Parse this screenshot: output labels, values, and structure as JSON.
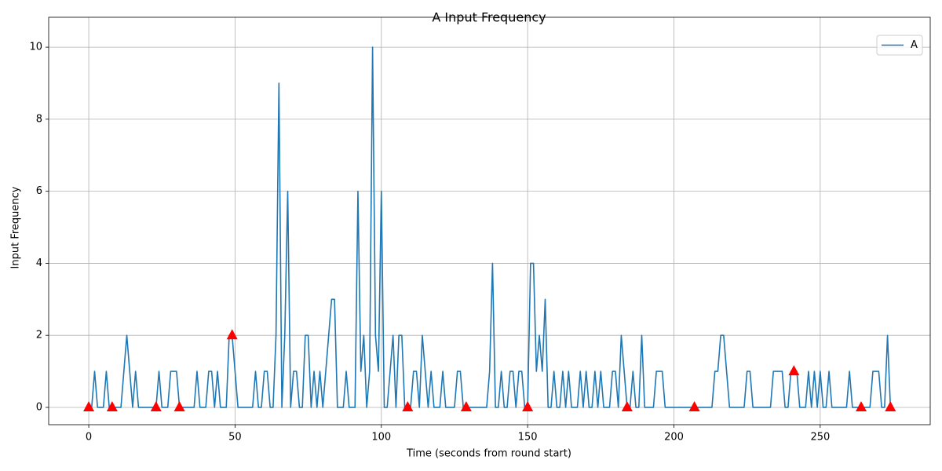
{
  "chart_data": {
    "type": "line",
    "title": "A Input Frequency",
    "x_label": "Time (seconds from round start)",
    "y_label": "Input Frequency",
    "xlim": [
      -13.7,
      287.6
    ],
    "ylim": [
      -0.48,
      10.83
    ],
    "xticks": [
      0,
      50,
      100,
      150,
      200,
      250
    ],
    "yticks": [
      0,
      2,
      4,
      6,
      8,
      10
    ],
    "grid": true,
    "legend": "upper right",
    "series": [
      {
        "name": "A",
        "color": "#1f77b4",
        "x": [
          0,
          1,
          2,
          3,
          4,
          5,
          6,
          7,
          8,
          9,
          10,
          11,
          12,
          13,
          14,
          15,
          16,
          17,
          18,
          19,
          20,
          21,
          22,
          23,
          24,
          25,
          26,
          27,
          28,
          29,
          30,
          31,
          32,
          33,
          34,
          35,
          36,
          37,
          38,
          39,
          40,
          41,
          42,
          43,
          44,
          45,
          46,
          47,
          48,
          49,
          50,
          51,
          52,
          53,
          54,
          55,
          56,
          57,
          58,
          59,
          60,
          61,
          62,
          63,
          64,
          65,
          66,
          67,
          68,
          69,
          70,
          71,
          72,
          73,
          74,
          75,
          76,
          77,
          78,
          79,
          80,
          81,
          82,
          83,
          84,
          85,
          86,
          87,
          88,
          89,
          90,
          91,
          92,
          93,
          94,
          95,
          96,
          97,
          98,
          99,
          100,
          101,
          102,
          103,
          104,
          105,
          106,
          107,
          108,
          109,
          110,
          111,
          112,
          113,
          114,
          115,
          116,
          117,
          118,
          119,
          120,
          121,
          122,
          123,
          124,
          125,
          126,
          127,
          128,
          129,
          130,
          131,
          132,
          133,
          134,
          135,
          136,
          137,
          138,
          139,
          140,
          141,
          142,
          143,
          144,
          145,
          146,
          147,
          148,
          149,
          150,
          151,
          152,
          153,
          154,
          155,
          156,
          157,
          158,
          159,
          160,
          161,
          162,
          163,
          164,
          165,
          166,
          167,
          168,
          169,
          170,
          171,
          172,
          173,
          174,
          175,
          176,
          177,
          178,
          179,
          180,
          181,
          182,
          183,
          184,
          185,
          186,
          187,
          188,
          189,
          190,
          191,
          192,
          193,
          194,
          195,
          196,
          197,
          198,
          199,
          200,
          201,
          202,
          203,
          204,
          205,
          206,
          207,
          208,
          209,
          210,
          211,
          212,
          213,
          214,
          215,
          216,
          217,
          218,
          219,
          220,
          221,
          222,
          223,
          224,
          225,
          226,
          227,
          228,
          229,
          230,
          231,
          232,
          233,
          234,
          235,
          236,
          237,
          238,
          239,
          240,
          241,
          242,
          243,
          244,
          245,
          246,
          247,
          248,
          249,
          250,
          251,
          252,
          253,
          254,
          255,
          256,
          257,
          258,
          259,
          260,
          261,
          262,
          263,
          264,
          265,
          266,
          267,
          268,
          269,
          270,
          271,
          272,
          273,
          274
        ],
        "values": [
          0,
          0,
          1,
          0,
          0,
          0,
          1,
          0,
          0,
          0,
          0,
          0,
          1,
          2,
          1,
          0,
          1,
          0,
          0,
          0,
          0,
          0,
          0,
          0,
          1,
          0,
          0,
          0,
          1,
          1,
          1,
          0,
          0,
          0,
          0,
          0,
          0,
          1,
          0,
          0,
          0,
          1,
          1,
          0,
          1,
          0,
          0,
          0,
          2,
          2,
          1,
          0,
          0,
          0,
          0,
          0,
          0,
          1,
          0,
          0,
          1,
          1,
          0,
          0,
          2,
          9,
          0,
          2,
          6,
          0,
          1,
          1,
          0,
          0,
          2,
          2,
          0,
          1,
          0,
          1,
          0,
          1,
          2,
          3,
          3,
          0,
          0,
          0,
          1,
          0,
          0,
          0,
          6,
          1,
          2,
          0,
          1,
          10,
          2,
          1,
          6,
          0,
          0,
          1,
          2,
          0,
          2,
          2,
          0,
          0,
          0,
          1,
          1,
          0,
          2,
          1,
          0,
          1,
          0,
          0,
          0,
          1,
          0,
          0,
          0,
          0,
          1,
          1,
          0,
          0,
          0,
          0,
          0,
          0,
          0,
          0,
          0,
          1,
          4,
          0,
          0,
          1,
          0,
          0,
          1,
          1,
          0,
          1,
          1,
          0,
          0,
          4,
          4,
          1,
          2,
          1,
          3,
          0,
          0,
          1,
          0,
          0,
          1,
          0,
          1,
          0,
          0,
          0,
          1,
          0,
          1,
          0,
          0,
          1,
          0,
          1,
          0,
          0,
          0,
          1,
          1,
          0,
          2,
          1,
          0,
          0,
          1,
          0,
          0,
          2,
          0,
          0,
          0,
          0,
          1,
          1,
          1,
          0,
          0,
          0,
          0,
          0,
          0,
          0,
          0,
          0,
          0,
          0,
          0,
          0,
          0,
          0,
          0,
          0,
          1,
          1,
          2,
          2,
          1,
          0,
          0,
          0,
          0,
          0,
          0,
          1,
          1,
          0,
          0,
          0,
          0,
          0,
          0,
          0,
          1,
          1,
          1,
          1,
          0,
          0,
          1,
          1,
          1,
          0,
          0,
          0,
          1,
          0,
          1,
          0,
          1,
          0,
          0,
          1,
          0,
          0,
          0,
          0,
          0,
          0,
          1,
          0,
          0,
          0,
          0,
          0,
          0,
          0,
          1,
          1,
          1,
          0,
          0,
          2,
          0
        ]
      }
    ],
    "markers": {
      "color": "#ff0000",
      "x": [
        0,
        8,
        23,
        31,
        49,
        109,
        129,
        150,
        184,
        207,
        241,
        264,
        274
      ],
      "values": [
        0,
        0,
        0,
        0,
        2,
        0,
        0,
        0,
        0,
        0,
        1,
        0,
        0
      ]
    }
  }
}
